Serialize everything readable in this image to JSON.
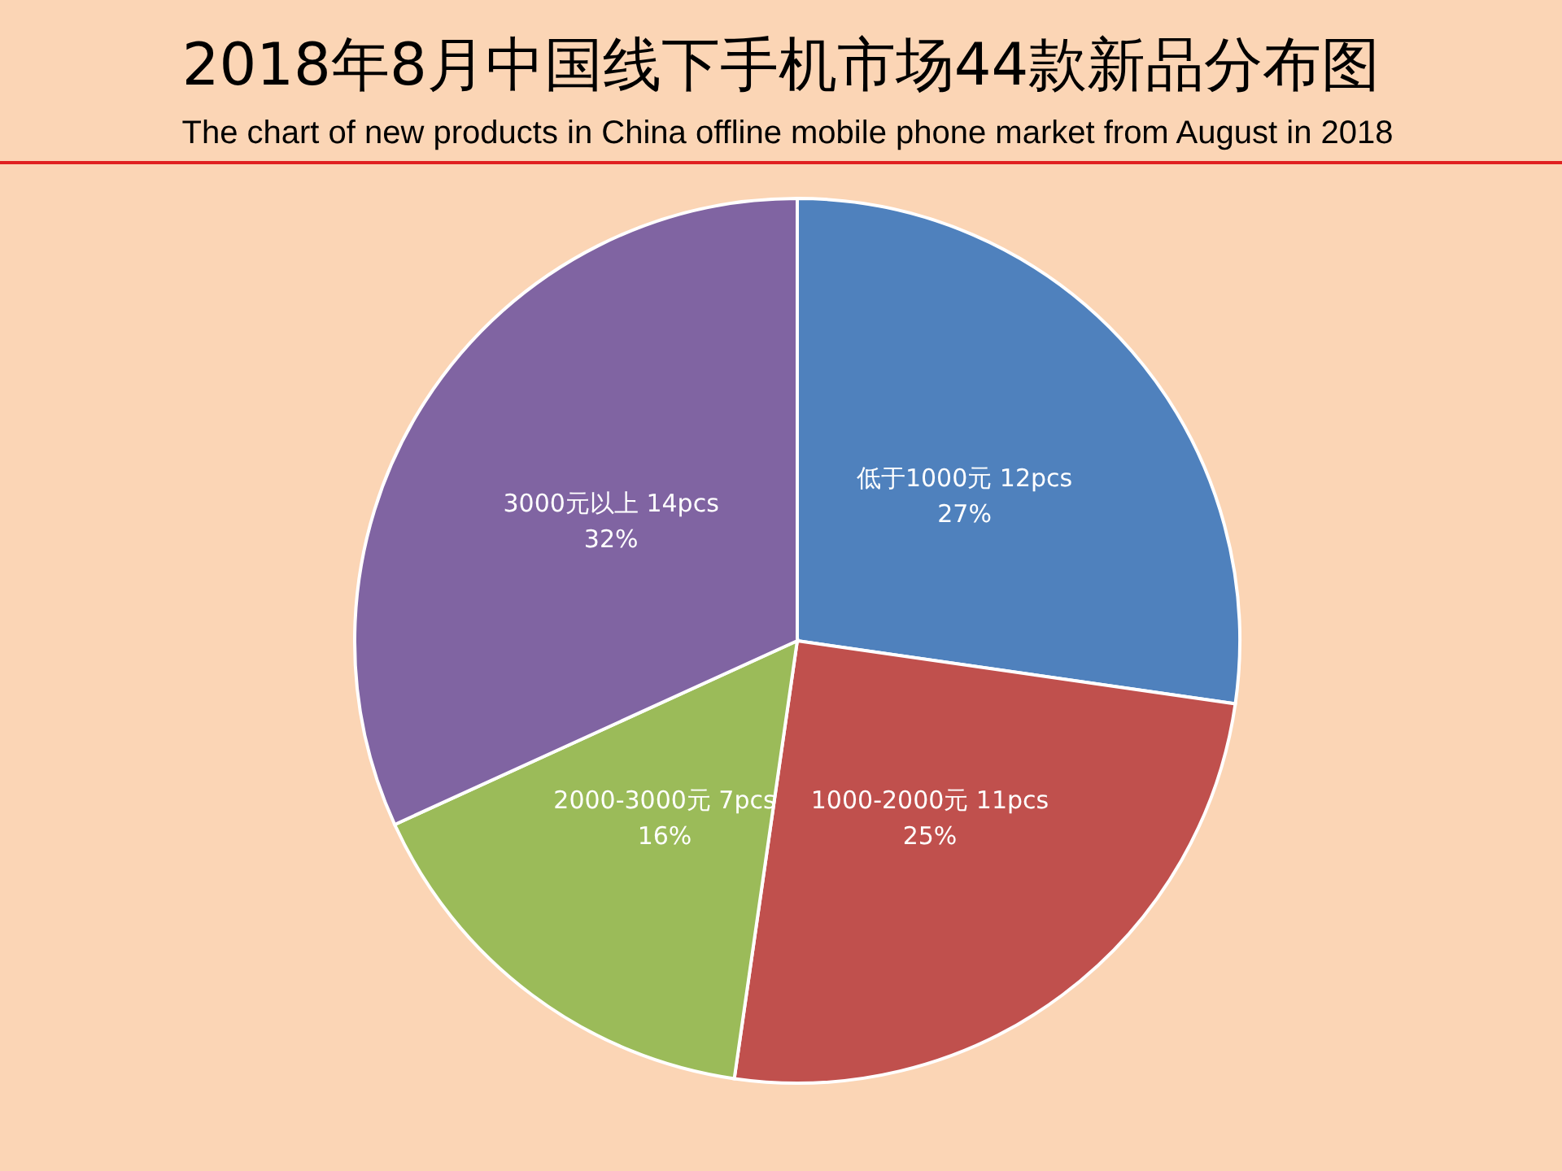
{
  "chart_data": {
    "type": "pie",
    "title": "2018年8月中国线下手机市场44款新品分布图",
    "subtitle": "The chart of new products in China offline mobile phone market from  August in 2018",
    "categories": [
      "低于1000元",
      "1000-2000元",
      "2000-3000元",
      "3000元以上"
    ],
    "values": [
      12,
      11,
      7,
      14
    ],
    "value_labels": [
      "12pcs\n27%",
      "11pcs\n25%",
      "7pcs\n16%",
      "14pcs\n32%"
    ],
    "colors": [
      "#4f81bd",
      "#c0504d",
      "#9bbb59",
      "#8064a2"
    ],
    "legend": false
  }
}
